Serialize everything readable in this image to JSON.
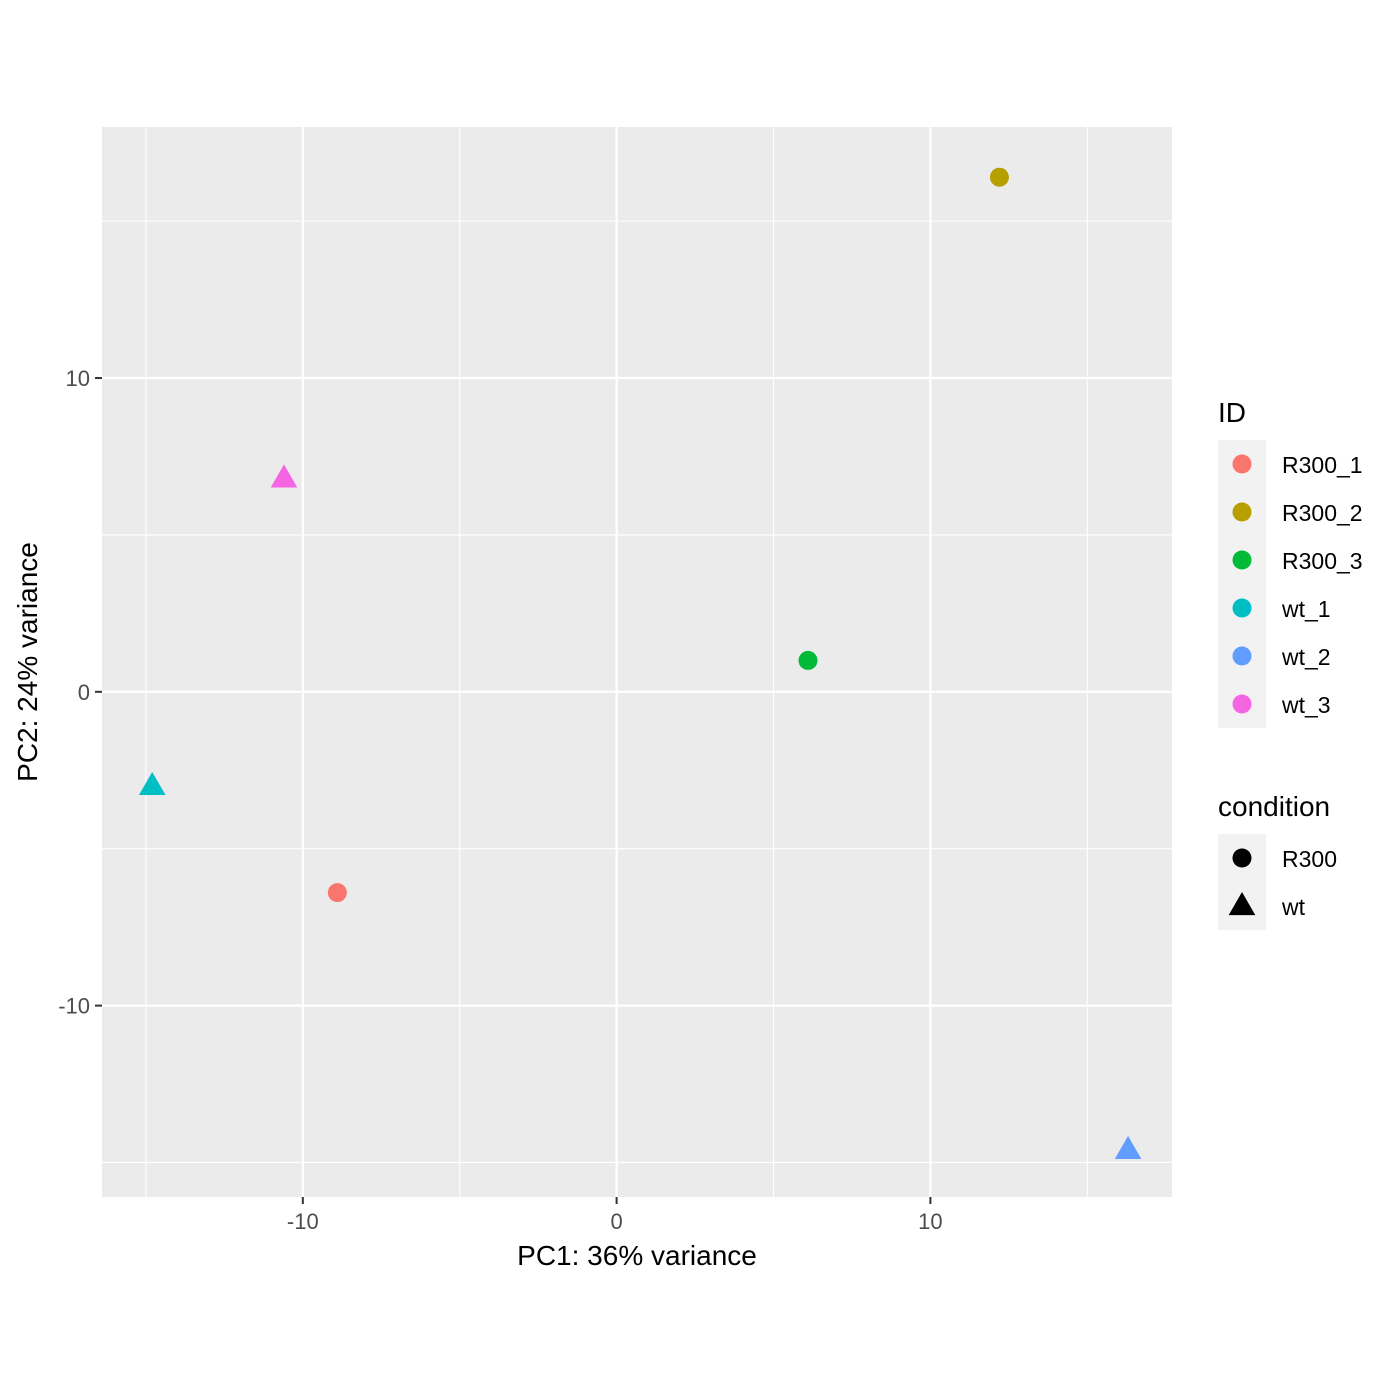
{
  "chart_data": {
    "type": "scatter",
    "xlabel": "PC1: 36% variance",
    "ylabel": "PC2: 24% variance",
    "xlim": [
      -16.4,
      17.7
    ],
    "ylim": [
      -16.1,
      18.0
    ],
    "x_ticks": [
      -10,
      0,
      10
    ],
    "x_tick_labels": [
      "-10",
      "0",
      "10"
    ],
    "y_ticks": [
      -10,
      0,
      10
    ],
    "y_tick_labels": [
      "-10",
      "0",
      "10"
    ],
    "x_minor_ticks": [
      -15,
      -5,
      5,
      15
    ],
    "y_minor_ticks": [
      -15,
      -5,
      5,
      15
    ],
    "grid": true,
    "legend_position": "right",
    "points": [
      {
        "id": "R300_1",
        "condition": "R300",
        "x": -8.9,
        "y": -6.4
      },
      {
        "id": "R300_2",
        "condition": "R300",
        "x": 12.2,
        "y": 16.4
      },
      {
        "id": "R300_3",
        "condition": "R300",
        "x": 6.1,
        "y": 1.0
      },
      {
        "id": "wt_1",
        "condition": "wt",
        "x": -14.8,
        "y": -3.0
      },
      {
        "id": "wt_2",
        "condition": "wt",
        "x": 16.3,
        "y": -14.6
      },
      {
        "id": "wt_3",
        "condition": "wt",
        "x": -10.6,
        "y": 6.8
      }
    ],
    "legends": [
      {
        "title": "ID",
        "aesthetic": "color",
        "entries": [
          {
            "label": "R300_1",
            "color": "#F8766D"
          },
          {
            "label": "R300_2",
            "color": "#B79F00"
          },
          {
            "label": "R300_3",
            "color": "#00BA38"
          },
          {
            "label": "wt_1",
            "color": "#00BFC4"
          },
          {
            "label": "wt_2",
            "color": "#619CFF"
          },
          {
            "label": "wt_3",
            "color": "#F564E3"
          }
        ]
      },
      {
        "title": "condition",
        "aesthetic": "shape",
        "entries": [
          {
            "label": "R300",
            "shape": "circle"
          },
          {
            "label": "wt",
            "shape": "triangle"
          }
        ]
      }
    ]
  },
  "colors": {
    "panel_background": "#EBEBEB",
    "grid_major": "#FFFFFF",
    "tick_text": "#4D4D4D",
    "legend_key_background": "#F2F2F2"
  }
}
